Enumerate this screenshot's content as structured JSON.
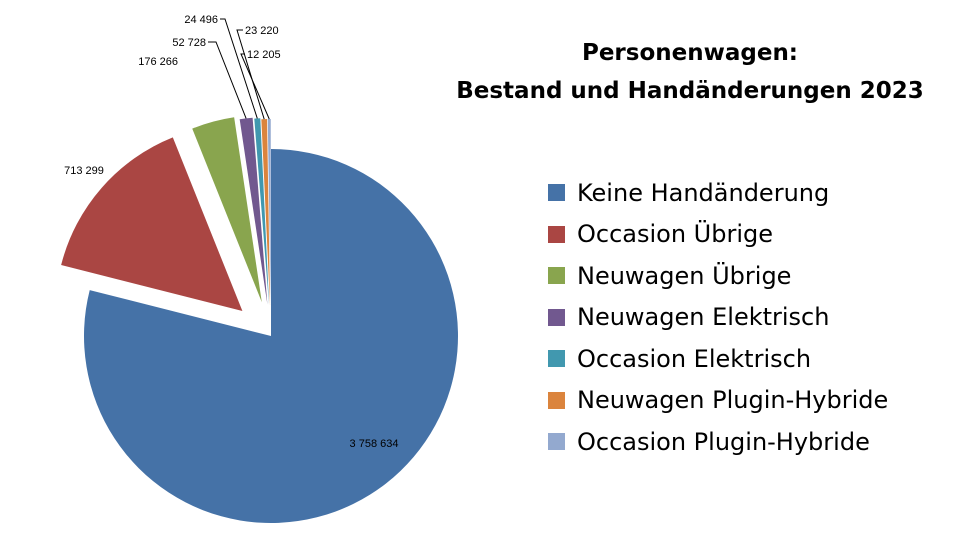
{
  "chart_data": {
    "type": "pie",
    "title_lines": [
      "Personenwagen:",
      "Bestand und Handänderungen 2023"
    ],
    "slices": [
      {
        "name": "Keine Handänderung",
        "value": 3758634,
        "label": "3 758 634",
        "color": "#4572a7"
      },
      {
        "name": "Occasion Übrige",
        "value": 713299,
        "label": "713 299",
        "color": "#aa4643"
      },
      {
        "name": "Neuwagen Übrige",
        "value": 176266,
        "label": "176 266",
        "color": "#89a54e"
      },
      {
        "name": "Neuwagen Elektrisch",
        "value": 52728,
        "label": "52 728",
        "color": "#71588f"
      },
      {
        "name": "Occasion Elektrisch",
        "value": 24496,
        "label": "24 496",
        "color": "#4198af"
      },
      {
        "name": "Neuwagen Plugin-Hybride",
        "value": 23220,
        "label": "23 220",
        "color": "#db843d"
      },
      {
        "name": "Occasion Plugin-Hybride",
        "value": 12205,
        "label": "12 205",
        "color": "#93a9cf"
      }
    ],
    "legend_position": "right"
  }
}
